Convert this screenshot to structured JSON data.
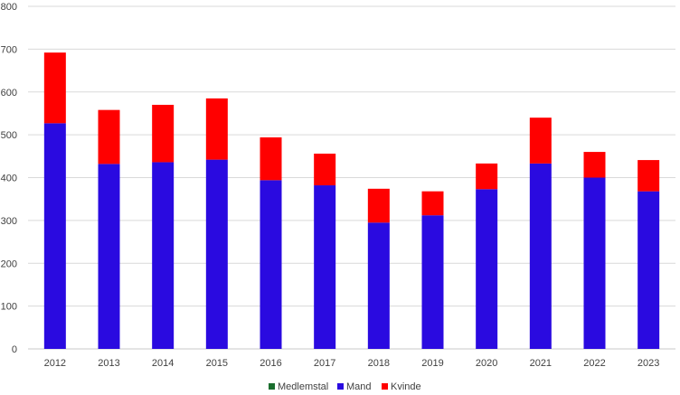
{
  "chart_data": {
    "type": "bar",
    "stacked": true,
    "categories": [
      "2012",
      "2013",
      "2014",
      "2015",
      "2016",
      "2017",
      "2018",
      "2019",
      "2020",
      "2021",
      "2022",
      "2023"
    ],
    "series": [
      {
        "name": "Medlemstal",
        "color": "#1a6e2e",
        "values": [
          0,
          0,
          0,
          0,
          0,
          0,
          0,
          0,
          0,
          0,
          0,
          0
        ]
      },
      {
        "name": "Mand",
        "color": "#2a0ae0",
        "values": [
          527,
          432,
          436,
          442,
          394,
          382,
          295,
          312,
          373,
          433,
          400,
          368
        ]
      },
      {
        "name": "Kvinde",
        "color": "#ff0000",
        "values": [
          165,
          126,
          134,
          143,
          100,
          74,
          79,
          56,
          60,
          107,
          60,
          73
        ]
      }
    ],
    "ylim": [
      0,
      800
    ],
    "yticks": [
      0,
      100,
      200,
      300,
      400,
      500,
      600,
      700,
      800
    ],
    "grid": true,
    "legend": "bottom",
    "title": "",
    "xlabel": "",
    "ylabel": ""
  }
}
